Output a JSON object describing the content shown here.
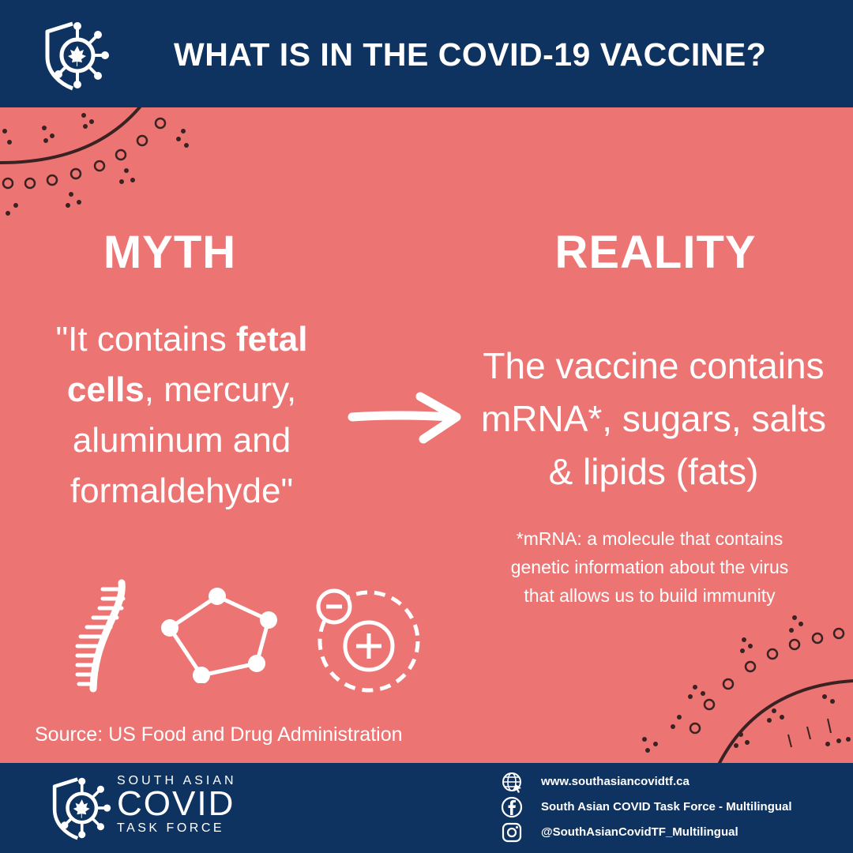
{
  "header": {
    "title": "WHAT IS IN THE COVID-19 VACCINE?",
    "logo_icon": "virus-shield-maple-leaf-icon"
  },
  "myth": {
    "heading": "MYTH",
    "line1_pre": "\"It contains ",
    "line1_bold": "fetal",
    "line2_bold": "cells",
    "line2_post": ", mercury,",
    "line3": "aluminum and",
    "line4": "formaldehyde\""
  },
  "reality": {
    "heading": "REALITY",
    "line1": "The vaccine contains",
    "line2": "mRNA*, sugars, salts",
    "line3": "& lipids (fats)",
    "footnote_line1": "*mRNA: a molecule that contains",
    "footnote_line2": "genetic information about the virus",
    "footnote_line3": "that allows us to build immunity"
  },
  "icons": [
    "arrow-right-icon",
    "dna-strand-icon",
    "molecule-icon",
    "ion-charge-icon"
  ],
  "source": "Source: US Food and Drug Administration",
  "footer": {
    "org_line1": "SOUTH ASIAN",
    "org_line2": "COVID",
    "org_line3": "TASK FORCE",
    "website": "www.southasiancovidtf.ca",
    "facebook": "South Asian COVID Task Force - Multilingual",
    "instagram": "@SouthAsianCovidTF_Multilingual"
  },
  "colors": {
    "background": "#EC7574",
    "navy": "#0F3360",
    "text": "#FFFFFF",
    "decoration": "#3A2222"
  }
}
